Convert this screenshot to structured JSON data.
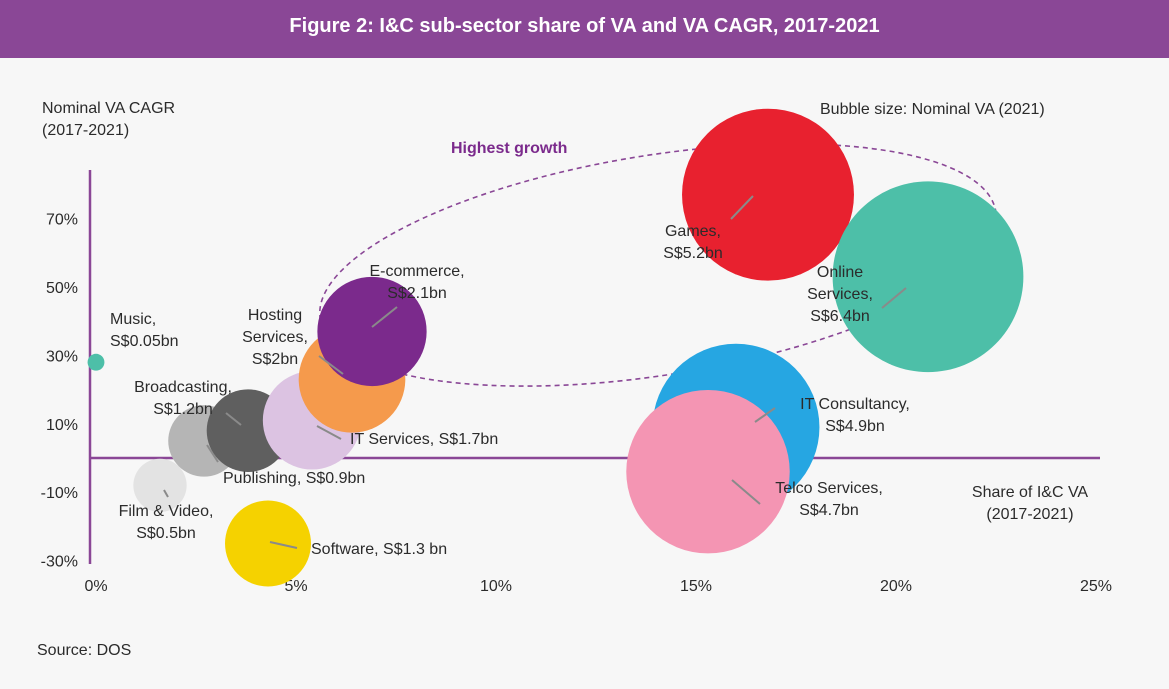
{
  "header": {
    "title": "Figure 2: I&C sub-sector share of VA and VA CAGR, 2017-2021"
  },
  "source": "Source: DOS",
  "colors": {
    "header": "#8a4796",
    "axis": "#8a4796",
    "highlight": "#8a4796"
  },
  "chart_data": {
    "type": "scatter",
    "bubble": true,
    "title": "Figure 2: I&C sub-sector share of VA and VA CAGR, 2017-2021",
    "ylabel": [
      "Nominal VA CAGR",
      "(2017-2021)"
    ],
    "xlabel": [
      "Share of I&C VA",
      "(2017-2021)"
    ],
    "size_label": "Bubble size: Nominal VA (2021)",
    "annotation": "Highest growth",
    "xlim": [
      0,
      25
    ],
    "ylim": [
      -30,
      80
    ],
    "x_ticks": [
      "0%",
      "5%",
      "10%",
      "15%",
      "20%",
      "25%"
    ],
    "x_tick_values": [
      0,
      5,
      10,
      15,
      20,
      25
    ],
    "y_ticks": [
      "70%",
      "50%",
      "30%",
      "10%",
      "-10%",
      "-30%"
    ],
    "y_tick_values": [
      70,
      50,
      30,
      10,
      -10,
      -30
    ],
    "grid": false,
    "points": [
      {
        "name": "Music",
        "x": 0.0,
        "y": 28,
        "size": 0.05,
        "color": "#4dbfa8",
        "label": [
          "Music,",
          "S$0.05bn"
        ]
      },
      {
        "name": "Film & Video",
        "x": 1.6,
        "y": -8,
        "size": 0.5,
        "color": "#e3e3e3",
        "label": [
          "Film & Video,",
          "S$0.5bn"
        ]
      },
      {
        "name": "Publishing",
        "x": 2.7,
        "y": 5,
        "size": 0.9,
        "color": "#b5b5b5",
        "label": [
          "Publishing, S$0.9bn"
        ]
      },
      {
        "name": "Broadcasting",
        "x": 3.8,
        "y": 8,
        "size": 1.2,
        "color": "#5f5f5f",
        "label": [
          "Broadcasting,",
          "S$1.2bn"
        ]
      },
      {
        "name": "Software",
        "x": 4.3,
        "y": -25,
        "size": 1.3,
        "color": "#f5d200",
        "label": [
          "Software, S$1.3 bn"
        ]
      },
      {
        "name": "IT Services",
        "x": 5.4,
        "y": 11,
        "size": 1.7,
        "color": "#dcc3e2",
        "label": [
          "IT Services, S$1.7bn"
        ]
      },
      {
        "name": "Hosting Services",
        "x": 6.4,
        "y": 23,
        "size": 2.0,
        "color": "#f59a4c",
        "label": [
          "Hosting",
          "Services,",
          "S$2bn"
        ]
      },
      {
        "name": "E-commerce",
        "x": 6.9,
        "y": 37,
        "size": 2.1,
        "color": "#7b2a8c",
        "label": [
          "E-commerce,",
          "S$2.1bn"
        ]
      },
      {
        "name": "Games",
        "x": 16.8,
        "y": 77,
        "size": 5.2,
        "color": "#e8212f",
        "label": [
          "Games,",
          "S$5.2bn"
        ]
      },
      {
        "name": "Online Services",
        "x": 20.8,
        "y": 53,
        "size": 6.4,
        "color": "#4dbfa8",
        "label": [
          "Online",
          "Services,",
          "S$6.4bn"
        ]
      },
      {
        "name": "IT Consultancy",
        "x": 16.0,
        "y": 9,
        "size": 4.9,
        "color": "#26a6e2",
        "label": [
          "IT Consultancy,",
          "S$4.9bn"
        ]
      },
      {
        "name": "Telco Services",
        "x": 15.3,
        "y": -4,
        "size": 4.7,
        "color": "#f495b3",
        "label": [
          "Telco Services,",
          "S$4.7bn"
        ]
      }
    ]
  }
}
